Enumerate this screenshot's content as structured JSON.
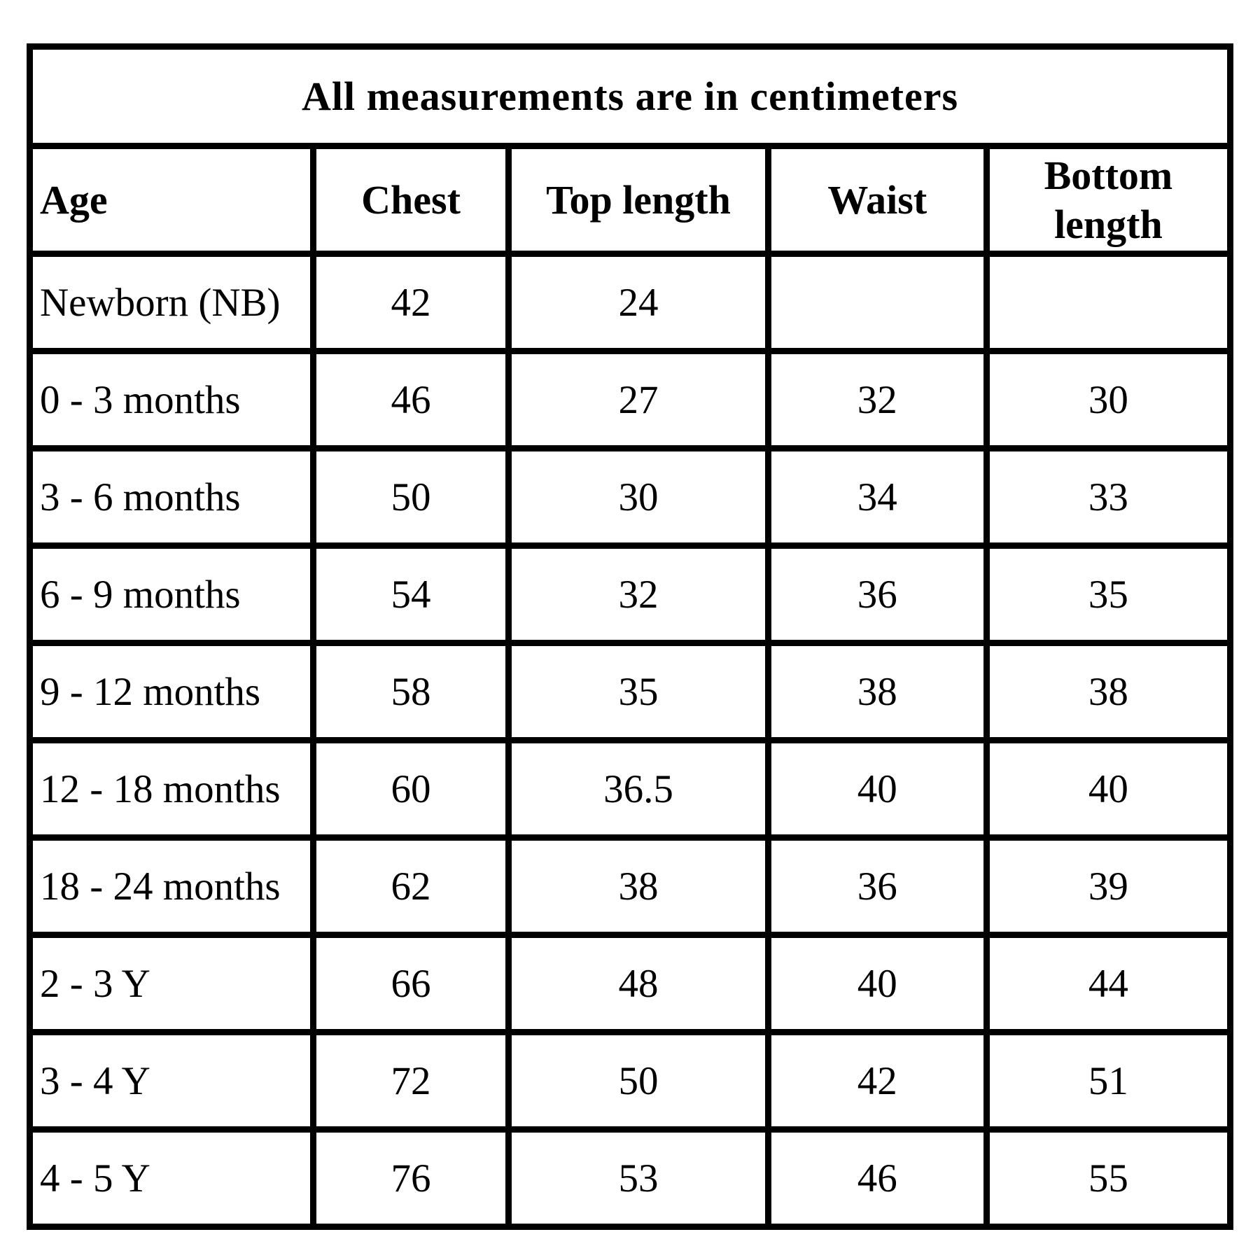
{
  "chart_data": {
    "type": "table",
    "title": "All measurements are in centimeters",
    "columns": [
      "Age",
      "Chest",
      "Top length",
      "Waist",
      "Bottom length"
    ],
    "rows": [
      [
        "Newborn (NB)",
        "42",
        "24",
        "",
        ""
      ],
      [
        "0 - 3 months",
        "46",
        "27",
        "32",
        "30"
      ],
      [
        "3 - 6 months",
        "50",
        "30",
        "34",
        "33"
      ],
      [
        "6 - 9 months",
        "54",
        "32",
        "36",
        "35"
      ],
      [
        "9 - 12 months",
        "58",
        "35",
        "38",
        "38"
      ],
      [
        "12 - 18 months",
        "60",
        "36.5",
        "40",
        "40"
      ],
      [
        "18 - 24 months",
        "62",
        "38",
        "36",
        "39"
      ],
      [
        "2 - 3 Y",
        "66",
        "48",
        "40",
        "44"
      ],
      [
        "3 - 4 Y",
        "72",
        "50",
        "42",
        "51"
      ],
      [
        "4 - 5 Y",
        "76",
        "53",
        "46",
        "55"
      ]
    ],
    "layout": {
      "legend": "none",
      "grid": "full-borders"
    }
  },
  "colors": {
    "border": "#000000",
    "background": "#ffffff",
    "text": "#000000"
  }
}
